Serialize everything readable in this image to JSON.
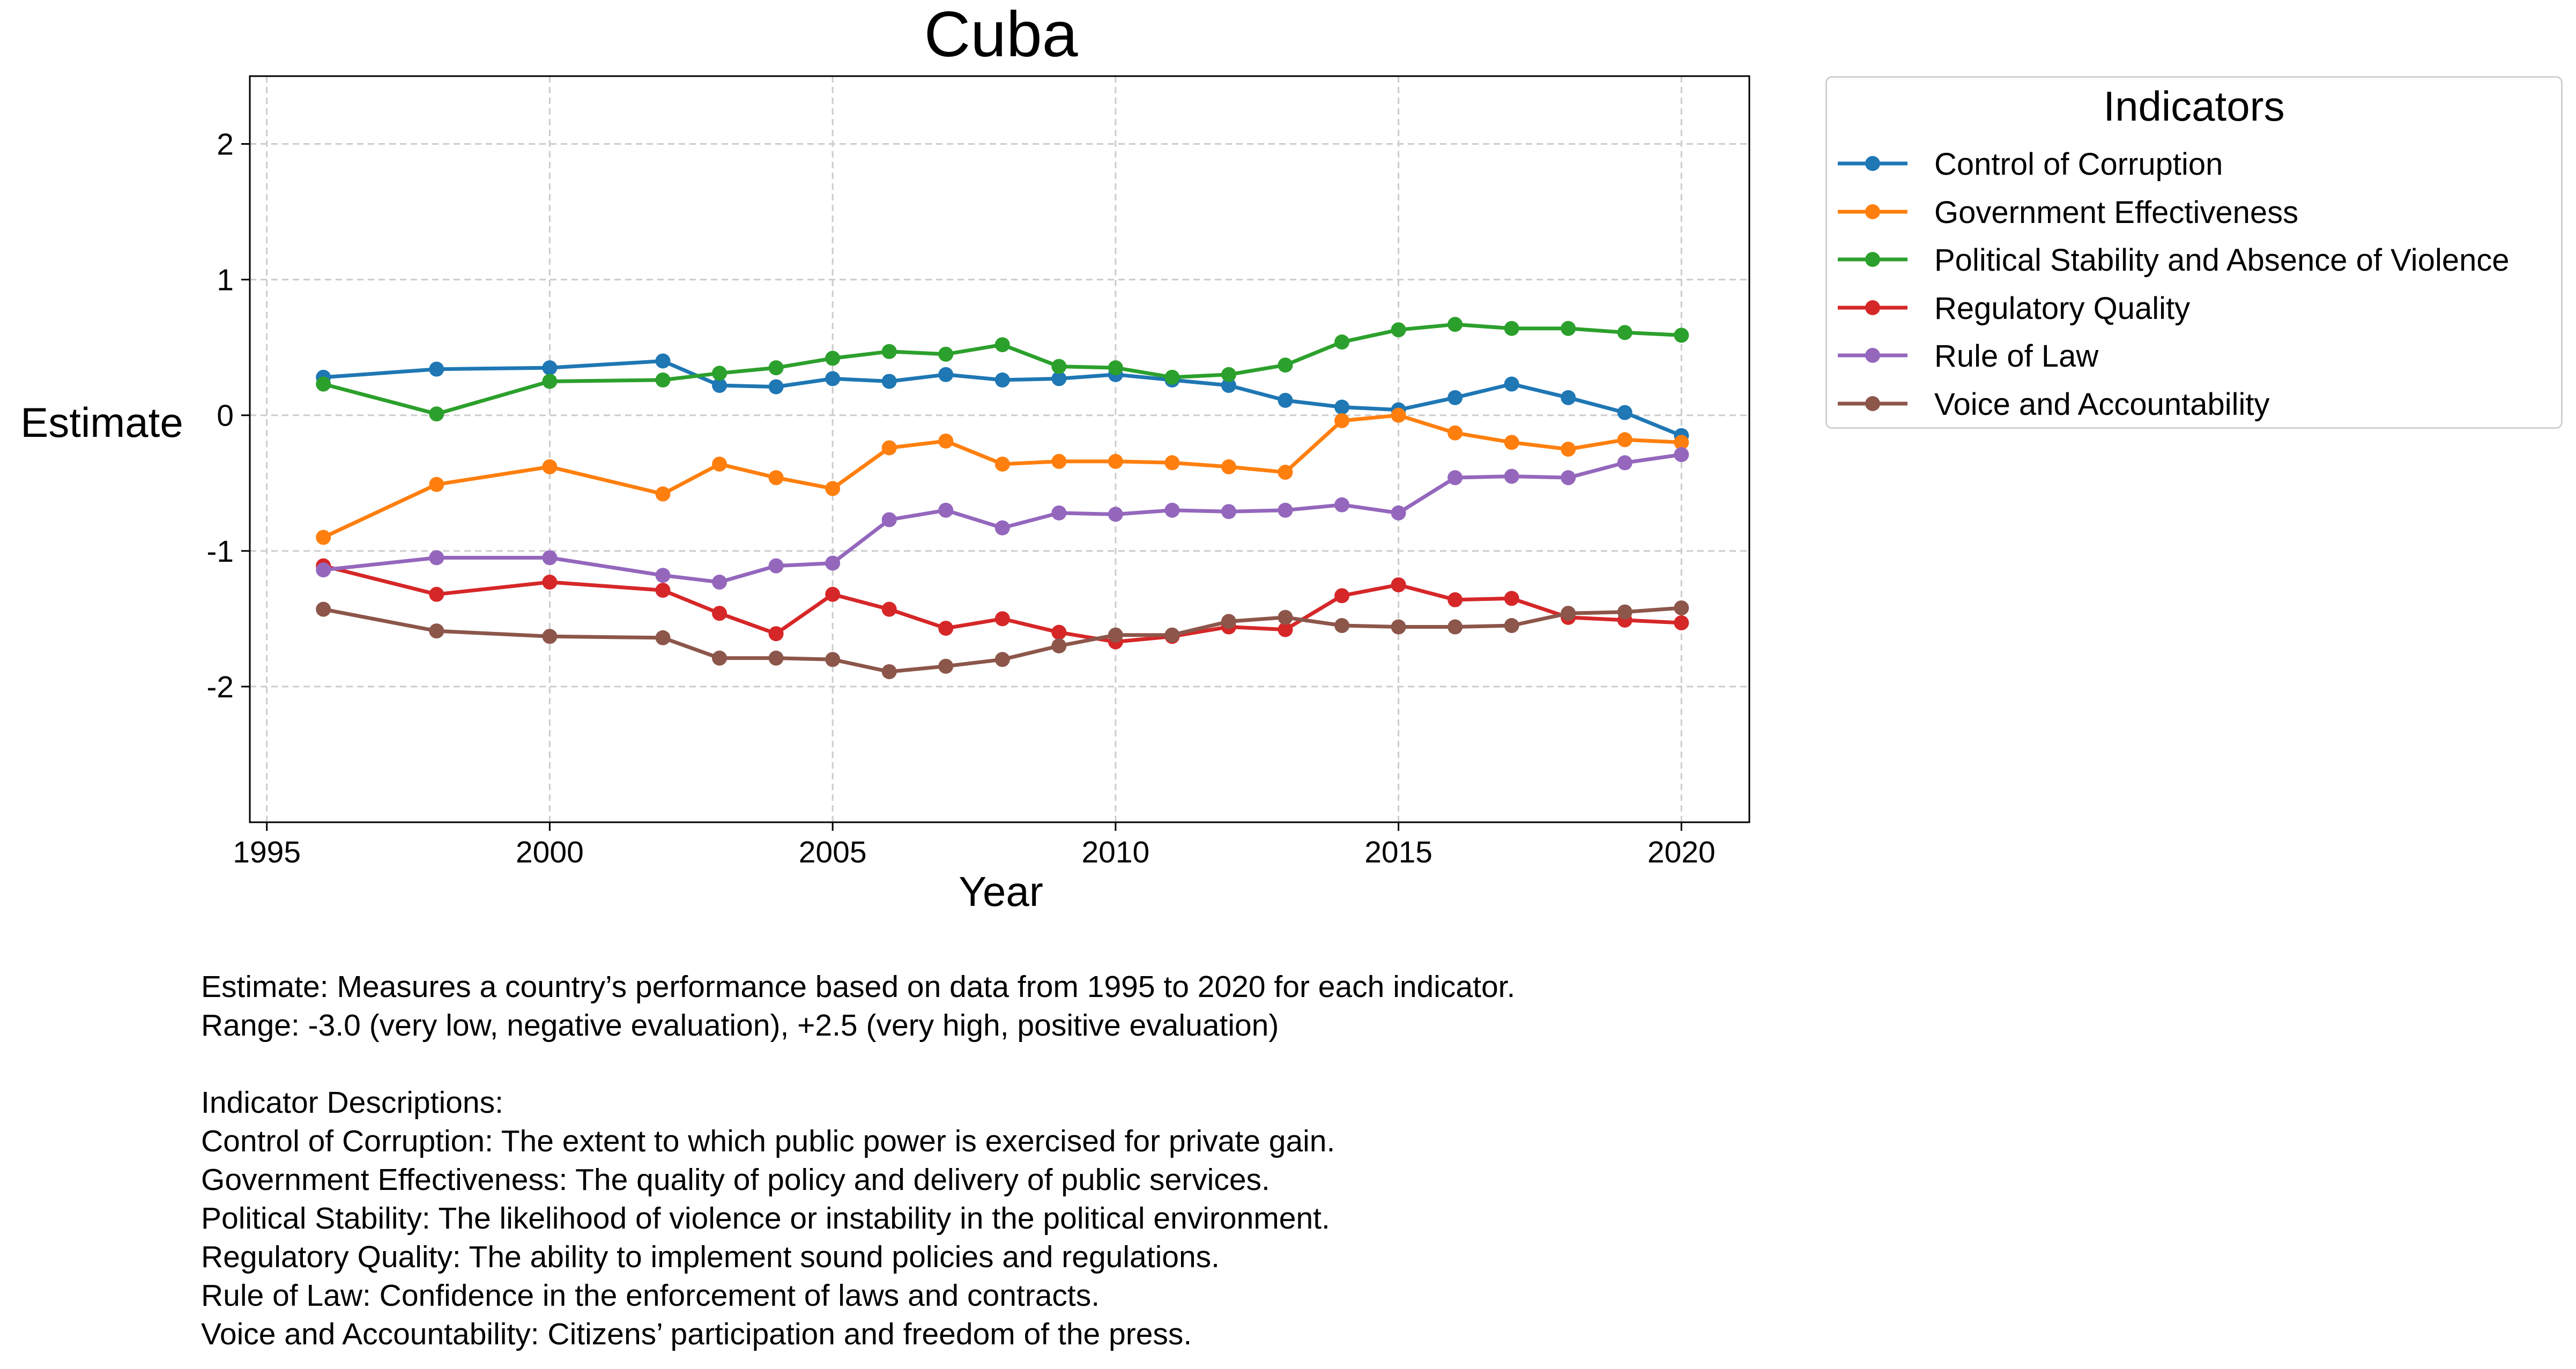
{
  "chart_data": {
    "type": "line",
    "title": "Cuba",
    "xlabel": "Year",
    "ylabel": "Estimate",
    "xlim": [
      1994.7,
      2021.2
    ],
    "ylim": [
      -3.0,
      2.5
    ],
    "xticks": [
      "1995",
      "2000",
      "2005",
      "2010",
      "2015",
      "2020"
    ],
    "yticks": [
      "2",
      "1",
      "0",
      "-1",
      "-2"
    ],
    "grid": true,
    "legend_title": "Indicators",
    "legend_position": "outside-right",
    "x": [
      1996,
      1998,
      2000,
      2002,
      2003,
      2004,
      2005,
      2006,
      2007,
      2008,
      2009,
      2010,
      2011,
      2012,
      2013,
      2014,
      2015,
      2016,
      2017,
      2018,
      2019,
      2020
    ],
    "series": [
      {
        "name": "Control of Corruption",
        "color": "#1f77b4",
        "values": [
          0.28,
          0.34,
          0.35,
          0.4,
          0.22,
          0.21,
          0.27,
          0.25,
          0.3,
          0.26,
          0.27,
          0.3,
          0.26,
          0.22,
          0.11,
          0.06,
          0.04,
          0.13,
          0.23,
          0.13,
          0.02,
          -0.15
        ]
      },
      {
        "name": "Government Effectiveness",
        "color": "#ff7f0e",
        "values": [
          -0.9,
          -0.51,
          -0.38,
          -0.58,
          -0.36,
          -0.46,
          -0.54,
          -0.24,
          -0.19,
          -0.36,
          -0.34,
          -0.34,
          -0.35,
          -0.38,
          -0.42,
          -0.04,
          0.0,
          -0.13,
          -0.2,
          -0.25,
          -0.18,
          -0.2
        ]
      },
      {
        "name": "Political Stability and Absence of Violence",
        "color": "#2ca02c",
        "values": [
          0.23,
          0.01,
          0.25,
          0.26,
          0.31,
          0.35,
          0.42,
          0.47,
          0.45,
          0.52,
          0.36,
          0.35,
          0.28,
          0.3,
          0.37,
          0.54,
          0.63,
          0.67,
          0.64,
          0.64,
          0.61,
          0.59
        ]
      },
      {
        "name": "Regulatory Quality",
        "color": "#d62728",
        "values": [
          -1.11,
          -1.32,
          -1.23,
          -1.29,
          -1.46,
          -1.61,
          -1.32,
          -1.43,
          -1.57,
          -1.5,
          -1.6,
          -1.67,
          -1.63,
          -1.56,
          -1.58,
          -1.33,
          -1.25,
          -1.36,
          -1.35,
          -1.49,
          -1.51,
          -1.53
        ]
      },
      {
        "name": "Rule of Law",
        "color": "#9467bd",
        "values": [
          -1.14,
          -1.05,
          -1.05,
          -1.18,
          -1.23,
          -1.11,
          -1.09,
          -0.77,
          -0.7,
          -0.83,
          -0.72,
          -0.73,
          -0.7,
          -0.71,
          -0.7,
          -0.66,
          -0.72,
          -0.46,
          -0.45,
          -0.46,
          -0.35,
          -0.29
        ]
      },
      {
        "name": "Voice and Accountability",
        "color": "#8c564b",
        "values": [
          -1.43,
          -1.59,
          -1.63,
          -1.64,
          -1.79,
          -1.79,
          -1.8,
          -1.89,
          -1.85,
          -1.8,
          -1.7,
          -1.62,
          -1.62,
          -1.52,
          -1.49,
          -1.55,
          -1.56,
          -1.56,
          -1.55,
          -1.46,
          -1.45,
          -1.42
        ]
      }
    ]
  },
  "notes": [
    "Estimate: Measures a country’s performance based on data from 1995 to 2020 for each indicator.",
    "Range: -3.0 (very low, negative evaluation), +2.5 (very high, positive evaluation)",
    "",
    "Indicator Descriptions:",
    "Control of Corruption: The extent to which public power is exercised for private gain.",
    "Government Effectiveness: The quality of policy and delivery of public services.",
    "Political Stability: The likelihood of violence or instability in the political environment.",
    "Regulatory Quality: The ability to implement sound policies and regulations.",
    "Rule of Law: Confidence in the enforcement of laws and contracts.",
    "Voice and Accountability: Citizens’ participation and freedom of the press."
  ]
}
